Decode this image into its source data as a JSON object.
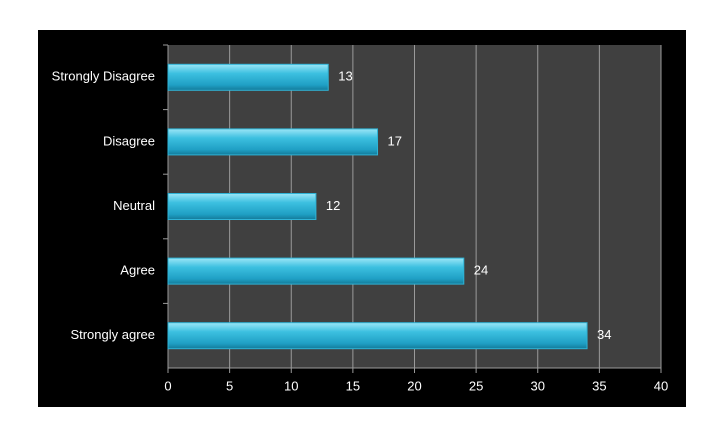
{
  "chart_data": {
    "type": "hbar",
    "categories": [
      "Strongly Disagree",
      "Disagree",
      "Neutral",
      "Agree",
      "Strongly agree"
    ],
    "values": [
      13,
      17,
      12,
      24,
      34
    ],
    "color": "#2fb3d6",
    "xlim": [
      0,
      40
    ],
    "xticks": [
      0,
      5,
      10,
      15,
      20,
      25,
      30,
      35,
      40
    ],
    "grid": true
  }
}
